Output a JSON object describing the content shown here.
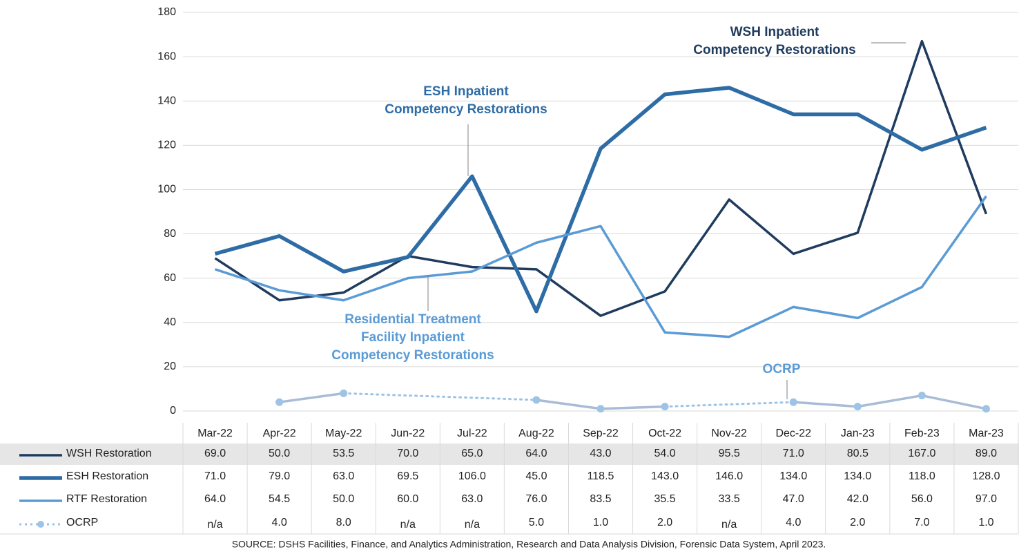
{
  "chart_data": {
    "type": "line",
    "categories": [
      "Mar-22",
      "Apr-22",
      "May-22",
      "Jun-22",
      "Jul-22",
      "Aug-22",
      "Sep-22",
      "Oct-22",
      "Nov-22",
      "Dec-22",
      "Jan-23",
      "Feb-23",
      "Mar-23"
    ],
    "ylim": [
      0,
      180
    ],
    "yticks": [
      0,
      20,
      40,
      60,
      80,
      100,
      120,
      140,
      160,
      180
    ],
    "grid": true,
    "series": [
      {
        "name": "WSH Restoration",
        "color": "#1f3b5e",
        "values": [
          69,
          50,
          53.5,
          70,
          65,
          64,
          43,
          54,
          95.5,
          71,
          80.5,
          167,
          89
        ],
        "value_labels": [
          "69.0",
          "50.0",
          "53.5",
          "70.0",
          "65.0",
          "64.0",
          "43.0",
          "54.0",
          "95.5",
          "71.0",
          "80.5",
          "167.0",
          "89.0"
        ]
      },
      {
        "name": "ESH Restoration",
        "color": "#2e6ca6",
        "values": [
          71,
          79,
          63,
          69.5,
          106,
          45,
          118.5,
          143,
          146,
          134,
          134,
          118,
          128
        ],
        "value_labels": [
          "71.0",
          "79.0",
          "63.0",
          "69.5",
          "106.0",
          "45.0",
          "118.5",
          "143.0",
          "146.0",
          "134.0",
          "134.0",
          "118.0",
          "128.0"
        ]
      },
      {
        "name": "RTF Restoration",
        "color": "#5b9bd5",
        "values": [
          64,
          54.5,
          50,
          60,
          63,
          76,
          83.5,
          35.5,
          33.5,
          47,
          42,
          56,
          97
        ],
        "value_labels": [
          "64.0",
          "54.5",
          "50.0",
          "60.0",
          "63.0",
          "76.0",
          "83.5",
          "35.5",
          "33.5",
          "47.0",
          "42.0",
          "56.0",
          "97.0"
        ]
      },
      {
        "name": "OCRP",
        "color": "#a9bbd6",
        "marker_color": "#9dc3e6",
        "values": [
          null,
          4,
          8,
          null,
          null,
          5,
          1,
          2,
          null,
          4,
          2,
          7,
          1
        ],
        "value_labels": [
          "n/a",
          "4.0",
          "8.0",
          "n/a",
          "n/a",
          "5.0",
          "1.0",
          "2.0",
          "n/a",
          "4.0",
          "2.0",
          "7.0",
          "1.0"
        ]
      }
    ],
    "annotations": [
      {
        "lines": [
          "WSH Inpatient",
          "Competency Restorations"
        ],
        "color": "#1f3b5e"
      },
      {
        "lines": [
          "ESH Inpatient",
          "Competency Restorations"
        ],
        "color": "#2e6ca6"
      },
      {
        "lines": [
          "Residential Treatment",
          "Facility Inpatient",
          "Competency Restorations"
        ],
        "color": "#5b9bd5"
      },
      {
        "lines": [
          "OCRP"
        ],
        "color": "#5b9bd5"
      }
    ],
    "source": "SOURCE: DSHS Facilities, Finance, and Analytics Administration, Research and Data Analysis Division, Forensic Data System, April 2023."
  }
}
